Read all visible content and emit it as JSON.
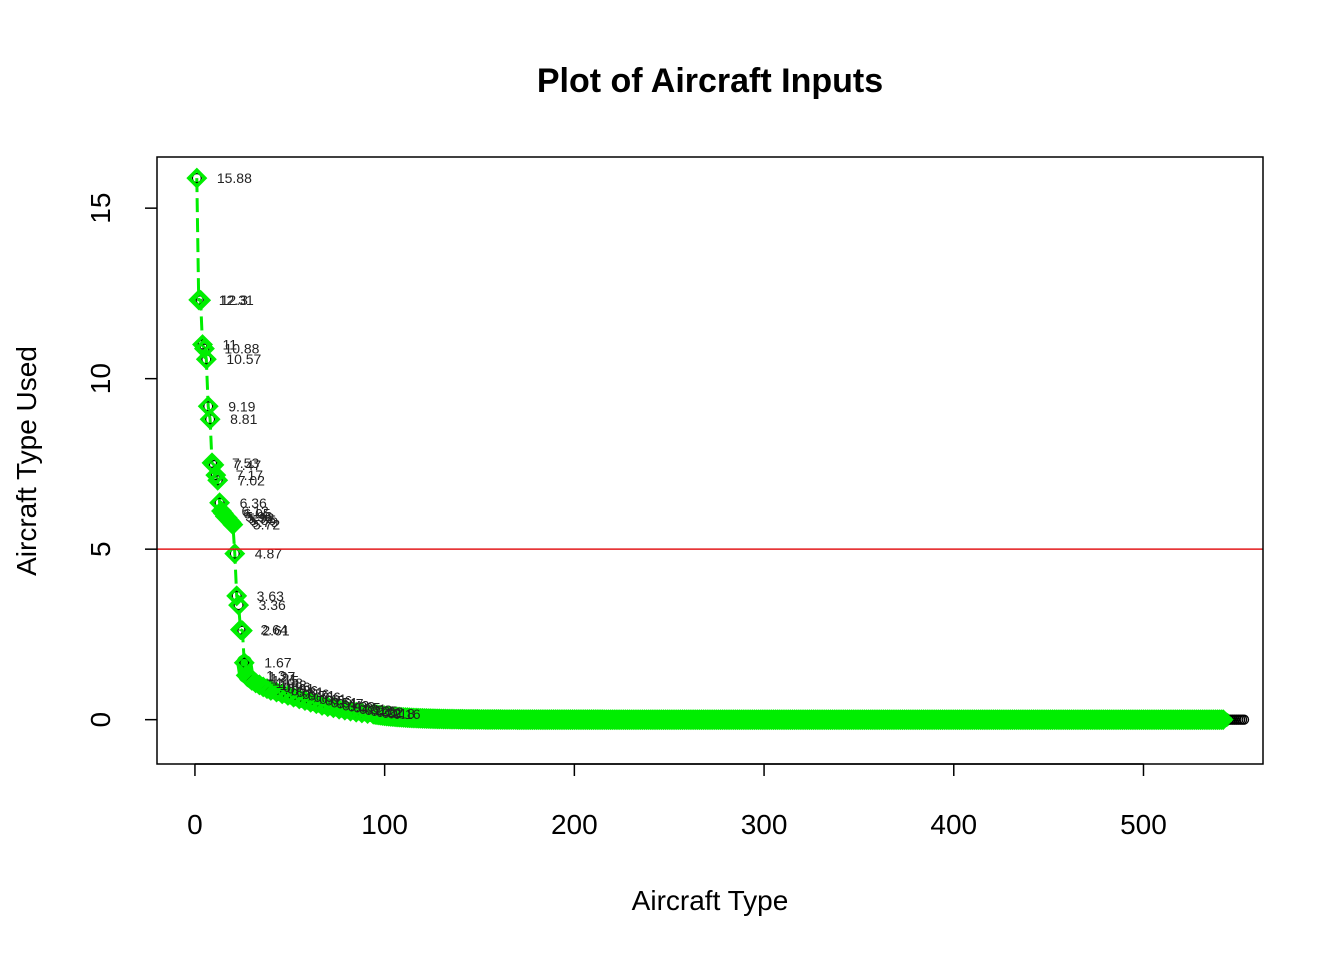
{
  "chart_data": {
    "type": "scatter",
    "title": "Plot of Aircraft Inputs",
    "xlabel": "Aircraft Type",
    "ylabel": "Aircraft Type Used",
    "xlim": [
      -20,
      563
    ],
    "ylim": [
      -1.3,
      16.5
    ],
    "x_ticks": [
      0,
      100,
      200,
      300,
      400,
      500
    ],
    "y_ticks": [
      0,
      5,
      10,
      15
    ],
    "reference_line": {
      "y": 5,
      "color": "#e31a1c"
    },
    "grid": false,
    "legend": "none",
    "colors": {
      "highlight": "#00ee00",
      "points": "#000000",
      "reference": "#e31a1c"
    },
    "n_points": 553,
    "n_highlighted": 542,
    "labeled_points": [
      {
        "x": 1,
        "y": 15.88,
        "label": "15.88"
      },
      {
        "x": 2,
        "y": 12.31,
        "label": "12.31"
      },
      {
        "x": 3,
        "y": 12.3,
        "label": "12.3"
      },
      {
        "x": 4,
        "y": 11,
        "label": "11"
      },
      {
        "x": 5,
        "y": 10.88,
        "label": "10.88"
      },
      {
        "x": 6,
        "y": 10.57,
        "label": "10.57"
      },
      {
        "x": 7,
        "y": 9.19,
        "label": "9.19"
      },
      {
        "x": 8,
        "y": 8.81,
        "label": "8.81"
      },
      {
        "x": 9,
        "y": 7.53,
        "label": "7.53"
      },
      {
        "x": 10,
        "y": 7.47,
        "label": "7.47"
      },
      {
        "x": 11,
        "y": 7.17,
        "label": "7.17"
      },
      {
        "x": 12,
        "y": 7.02,
        "label": "7.02"
      },
      {
        "x": 13,
        "y": 6.36,
        "label": "6.36"
      },
      {
        "x": 14,
        "y": 6.12,
        "label": "6.12"
      },
      {
        "x": 15,
        "y": 6.05,
        "label": "6.05"
      },
      {
        "x": 16,
        "y": 5.96,
        "label": "5.96"
      },
      {
        "x": 17,
        "y": 5.92,
        "label": "5.92"
      },
      {
        "x": 18,
        "y": 5.85,
        "label": "5.85"
      },
      {
        "x": 19,
        "y": 5.79,
        "label": "5.79"
      },
      {
        "x": 20,
        "y": 5.72,
        "label": "5.72"
      },
      {
        "x": 21,
        "y": 4.87,
        "label": "4.87"
      },
      {
        "x": 22,
        "y": 3.63,
        "label": "3.63"
      },
      {
        "x": 23,
        "y": 3.36,
        "label": "3.36"
      },
      {
        "x": 24,
        "y": 2.64,
        "label": "2.64"
      },
      {
        "x": 25,
        "y": 2.61,
        "label": "2.61"
      },
      {
        "x": 26,
        "y": 1.67,
        "label": "1.67"
      },
      {
        "x": 27,
        "y": 1.3,
        "label": "1.3"
      },
      {
        "x": 28,
        "y": 1.27,
        "label": "1.27"
      },
      {
        "x": 29,
        "y": 1.21,
        "label": "1.21"
      },
      {
        "x": 30,
        "y": 1.15,
        "label": "1.15"
      },
      {
        "x": 32,
        "y": 1.08,
        "label": "1.08"
      },
      {
        "x": 34,
        "y": 1.02,
        "label": "1.02"
      },
      {
        "x": 36,
        "y": 0.96,
        "label": "0.96"
      },
      {
        "x": 38,
        "y": 0.91,
        "label": "0.91"
      },
      {
        "x": 40,
        "y": 0.86,
        "label": "0.86"
      },
      {
        "x": 43,
        "y": 0.81,
        "label": "0.81"
      },
      {
        "x": 46,
        "y": 0.76,
        "label": "0.76"
      },
      {
        "x": 49,
        "y": 0.71,
        "label": "0.71"
      },
      {
        "x": 52,
        "y": 0.66,
        "label": "0.66"
      },
      {
        "x": 55,
        "y": 0.61,
        "label": "0.61"
      },
      {
        "x": 58,
        "y": 0.56,
        "label": "0.56"
      },
      {
        "x": 61,
        "y": 0.51,
        "label": "0.51"
      },
      {
        "x": 64,
        "y": 0.47,
        "label": "0.47"
      },
      {
        "x": 67,
        "y": 0.42,
        "label": "0.42"
      },
      {
        "x": 70,
        "y": 0.38,
        "label": "0.38"
      },
      {
        "x": 73,
        "y": 0.35,
        "label": "0.35"
      },
      {
        "x": 76,
        "y": 0.31,
        "label": "0.31"
      },
      {
        "x": 79,
        "y": 0.28,
        "label": "0.28"
      },
      {
        "x": 82,
        "y": 0.25,
        "label": "0.25"
      },
      {
        "x": 85,
        "y": 0.22,
        "label": "0.22"
      },
      {
        "x": 88,
        "y": 0.2,
        "label": "0.2"
      },
      {
        "x": 91,
        "y": 0.18,
        "label": "0.18"
      },
      {
        "x": 94,
        "y": 0.16,
        "label": "0.16"
      }
    ]
  }
}
